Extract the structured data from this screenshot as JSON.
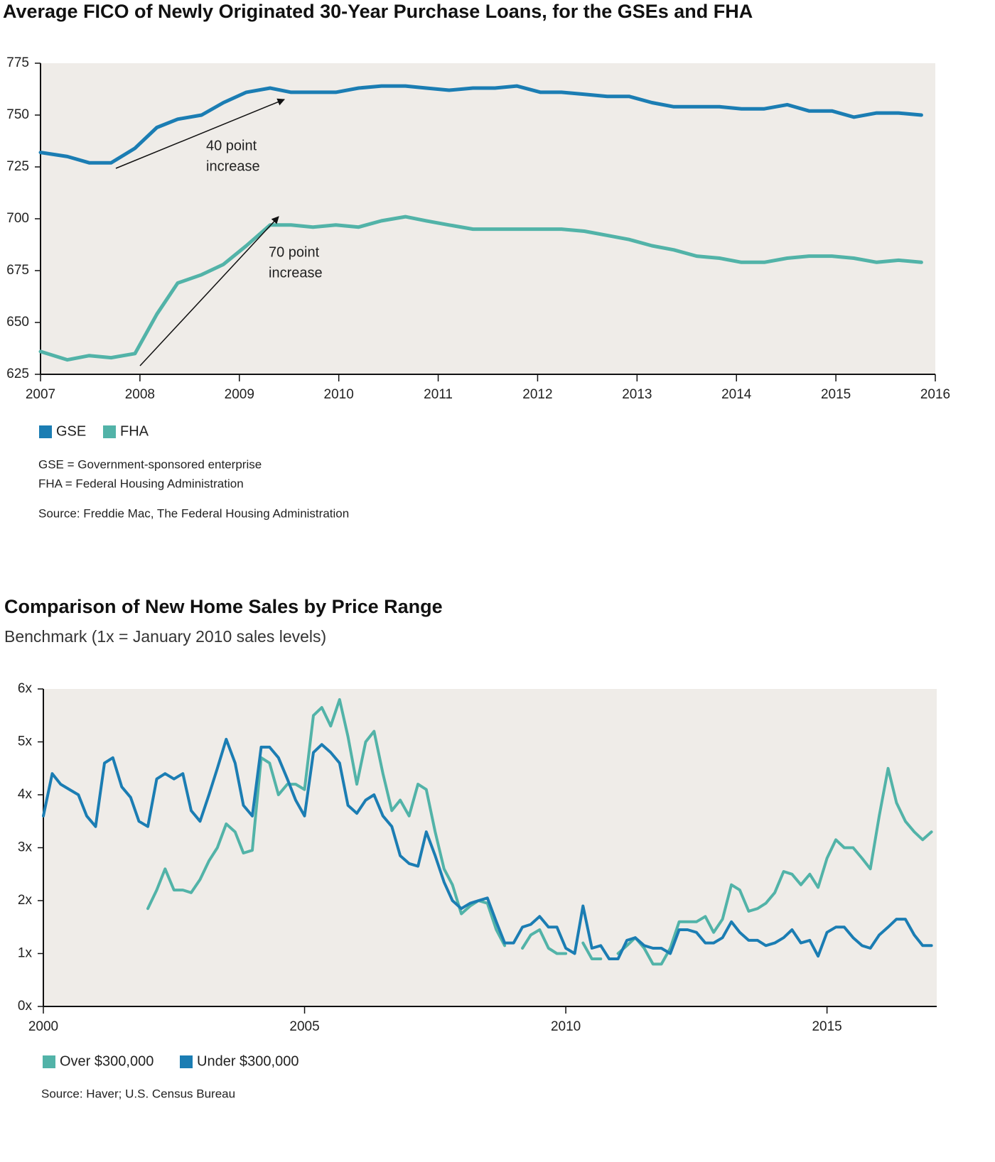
{
  "chart_data": [
    {
      "type": "line",
      "title": "Average FICO of Newly Originated 30-Year Purchase Loans, for the GSEs and FHA",
      "xlim": [
        2007,
        2016
      ],
      "xticks": [
        2007,
        2008,
        2009,
        2010,
        2011,
        2012,
        2013,
        2014,
        2015,
        2016
      ],
      "ylim": [
        625,
        775
      ],
      "yticks": [
        625,
        650,
        675,
        700,
        725,
        750,
        775
      ],
      "grid": false,
      "x": [
        2007.0,
        2007.27,
        2007.49,
        2007.71,
        2007.95,
        2008.17,
        2008.38,
        2008.62,
        2008.84,
        2009.07,
        2009.31,
        2009.52,
        2009.74,
        2009.97,
        2010.2,
        2010.43,
        2010.67,
        2010.88,
        2011.11,
        2011.35,
        2011.57,
        2011.79,
        2012.03,
        2012.24,
        2012.47,
        2012.7,
        2012.92,
        2013.15,
        2013.37,
        2013.6,
        2013.83,
        2014.05,
        2014.28,
        2014.51,
        2014.73,
        2014.96,
        2015.18,
        2015.41,
        2015.63,
        2015.86
      ],
      "series": [
        {
          "name": "GSE",
          "color": "#1b7db3",
          "values": [
            732,
            730,
            727,
            727,
            734,
            744,
            748,
            750,
            756,
            761,
            763,
            761,
            761,
            761,
            763,
            764,
            764,
            763,
            762,
            763,
            763,
            764,
            761,
            761,
            760,
            759,
            759,
            756,
            754,
            754,
            754,
            753,
            753,
            755,
            752,
            752,
            749,
            751,
            751,
            750
          ]
        },
        {
          "name": "FHA",
          "color": "#52b3a8",
          "values": [
            636,
            632,
            634,
            633,
            635,
            654,
            669,
            673,
            678,
            687,
            697,
            697,
            696,
            697,
            696,
            699,
            701,
            699,
            697,
            695,
            695,
            695,
            695,
            695,
            694,
            692,
            690,
            687,
            685,
            682,
            681,
            679,
            679,
            681,
            682,
            682,
            681,
            679,
            680,
            679
          ]
        }
      ],
      "annotations": [
        [
          "40 point",
          "increase"
        ],
        [
          "70 point",
          "increase"
        ]
      ],
      "notes": [
        "GSE = Government-sponsored enterprise",
        "FHA = Federal Housing Administration"
      ],
      "source": "Source: Freddie Mac, The Federal Housing Administration"
    },
    {
      "type": "line",
      "title": "Comparison of New Home Sales by Price Range",
      "subtitle": "Benchmark (1x = January 2010 sales levels)",
      "xlim": [
        2000,
        2017.1
      ],
      "xticks": [
        2000,
        2005,
        2010,
        2015
      ],
      "ylim": [
        0,
        6
      ],
      "yticks": [
        {
          "value": 0,
          "label": "0x"
        },
        {
          "value": 1,
          "label": "1x"
        },
        {
          "value": 2,
          "label": "2x"
        },
        {
          "value": 3,
          "label": "3x"
        },
        {
          "value": 4,
          "label": "4x"
        },
        {
          "value": 5,
          "label": "5x"
        },
        {
          "value": 6,
          "label": "6x"
        }
      ],
      "grid": false,
      "x": [
        2000,
        2000.17,
        2000.33,
        2000.5,
        2000.67,
        2000.83,
        2001,
        2001.17,
        2001.33,
        2001.5,
        2001.67,
        2001.83,
        2002,
        2002.17,
        2002.33,
        2002.5,
        2002.67,
        2002.83,
        2003,
        2003.17,
        2003.33,
        2003.5,
        2003.67,
        2003.83,
        2004,
        2004.17,
        2004.33,
        2004.5,
        2004.67,
        2004.83,
        2005,
        2005.17,
        2005.33,
        2005.5,
        2005.67,
        2005.83,
        2006,
        2006.17,
        2006.33,
        2006.5,
        2006.67,
        2006.83,
        2007,
        2007.17,
        2007.33,
        2007.5,
        2007.67,
        2007.83,
        2008,
        2008.17,
        2008.33,
        2008.5,
        2008.67,
        2008.83,
        2009,
        2009.17,
        2009.33,
        2009.5,
        2009.67,
        2009.83,
        2010,
        2010.17,
        2010.33,
        2010.5,
        2010.67,
        2010.83,
        2011,
        2011.17,
        2011.33,
        2011.5,
        2011.67,
        2011.83,
        2012,
        2012.17,
        2012.33,
        2012.5,
        2012.67,
        2012.83,
        2013,
        2013.17,
        2013.33,
        2013.5,
        2013.67,
        2013.83,
        2014,
        2014.17,
        2014.33,
        2014.5,
        2014.67,
        2014.83,
        2015,
        2015.17,
        2015.33,
        2015.5,
        2015.67,
        2015.83,
        2016,
        2016.17,
        2016.33,
        2016.5,
        2016.67,
        2016.83,
        2017
      ],
      "series": [
        {
          "name": "Over $300,000",
          "color": "#52b3a8",
          "values": [
            null,
            null,
            null,
            null,
            null,
            null,
            null,
            null,
            null,
            null,
            null,
            null,
            1.85,
            2.2,
            2.6,
            2.2,
            2.2,
            2.15,
            2.4,
            2.75,
            3.0,
            3.45,
            3.3,
            2.9,
            2.95,
            4.7,
            4.6,
            4.0,
            4.2,
            4.2,
            4.1,
            5.5,
            5.65,
            5.3,
            5.8,
            5.1,
            4.2,
            5.0,
            5.2,
            4.4,
            3.7,
            3.9,
            3.6,
            4.2,
            4.1,
            3.3,
            2.6,
            2.3,
            1.75,
            1.9,
            2.0,
            1.95,
            1.45,
            1.15,
            null,
            1.1,
            1.35,
            1.45,
            1.1,
            1.0,
            1.0,
            null,
            1.2,
            0.9,
            0.9,
            null,
            1.0,
            1.15,
            1.3,
            1.1,
            0.8,
            0.8,
            1.1,
            1.6,
            1.6,
            1.6,
            1.7,
            1.4,
            1.65,
            2.3,
            2.2,
            1.8,
            1.85,
            1.95,
            2.15,
            2.55,
            2.5,
            2.3,
            2.5,
            2.25,
            2.8,
            3.15,
            3.0,
            3.0,
            2.8,
            2.6,
            3.6,
            4.5,
            3.85,
            3.5,
            3.3,
            3.15,
            3.3
          ]
        },
        {
          "name": "Under $300,000",
          "color": "#1b7db3",
          "values": [
            3.6,
            4.4,
            4.2,
            4.1,
            4.0,
            3.6,
            3.4,
            4.6,
            4.7,
            4.15,
            3.95,
            3.5,
            3.4,
            4.3,
            4.4,
            4.3,
            4.4,
            3.7,
            3.5,
            4.0,
            4.5,
            5.05,
            4.6,
            3.8,
            3.6,
            4.9,
            4.9,
            4.7,
            4.3,
            3.9,
            3.6,
            4.8,
            4.95,
            4.8,
            4.6,
            3.8,
            3.65,
            3.9,
            4.0,
            3.6,
            3.4,
            2.85,
            2.7,
            2.65,
            3.3,
            2.85,
            2.35,
            2.0,
            1.85,
            1.95,
            2.0,
            2.05,
            1.6,
            1.2,
            1.2,
            1.5,
            1.55,
            1.7,
            1.5,
            1.5,
            1.1,
            1.0,
            1.9,
            1.1,
            1.15,
            0.9,
            0.9,
            1.25,
            1.3,
            1.15,
            1.1,
            1.1,
            1.0,
            1.45,
            1.45,
            1.4,
            1.2,
            1.2,
            1.3,
            1.6,
            1.4,
            1.25,
            1.25,
            1.15,
            1.2,
            1.3,
            1.45,
            1.2,
            1.25,
            0.95,
            1.4,
            1.5,
            1.5,
            1.3,
            1.15,
            1.1,
            1.35,
            1.5,
            1.65,
            1.65,
            1.35,
            1.15,
            1.15
          ]
        }
      ],
      "source": "Source: Haver; U.S. Census Bureau"
    }
  ]
}
